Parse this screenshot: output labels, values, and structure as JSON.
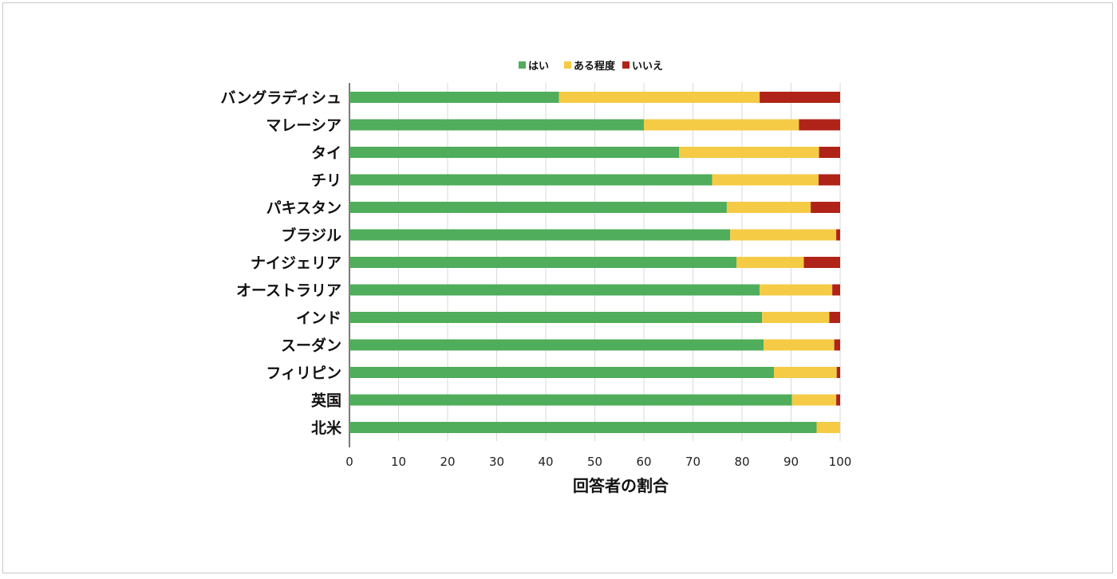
{
  "chart_data": {
    "type": "bar",
    "orientation": "horizontal",
    "stacked": true,
    "categories": [
      "バングラディシュ",
      "マレーシア",
      "タイ",
      "チリ",
      "パキスタン",
      "ブラジル",
      "ナイジェリア",
      "オーストラリア",
      "インド",
      "スーダン",
      "フィリピン",
      "英国",
      "北米"
    ],
    "series": [
      {
        "name": "はい",
        "color": "#4fad5b",
        "values": [
          42.7,
          60.0,
          67.2,
          73.9,
          76.9,
          77.6,
          78.9,
          83.6,
          84.1,
          84.4,
          86.5,
          90.2,
          95.2
        ]
      },
      {
        "name": "ある程度",
        "color": "#f5cb45",
        "values": [
          40.9,
          31.6,
          28.5,
          21.7,
          17.1,
          21.6,
          13.7,
          14.8,
          13.7,
          14.4,
          12.8,
          9.0,
          4.8
        ]
      },
      {
        "name": "いいえ",
        "color": "#b02318",
        "values": [
          16.4,
          8.4,
          4.3,
          4.4,
          6.0,
          0.8,
          7.4,
          1.6,
          2.2,
          1.2,
          0.7,
          0.8,
          0.0
        ]
      }
    ],
    "xlabel": "回答者の割合",
    "ylabel": "",
    "xlim": [
      0,
      100
    ],
    "xticks": [
      0,
      10,
      20,
      30,
      40,
      50,
      60,
      70,
      80,
      90,
      100
    ],
    "grid": true,
    "legend": "top"
  }
}
